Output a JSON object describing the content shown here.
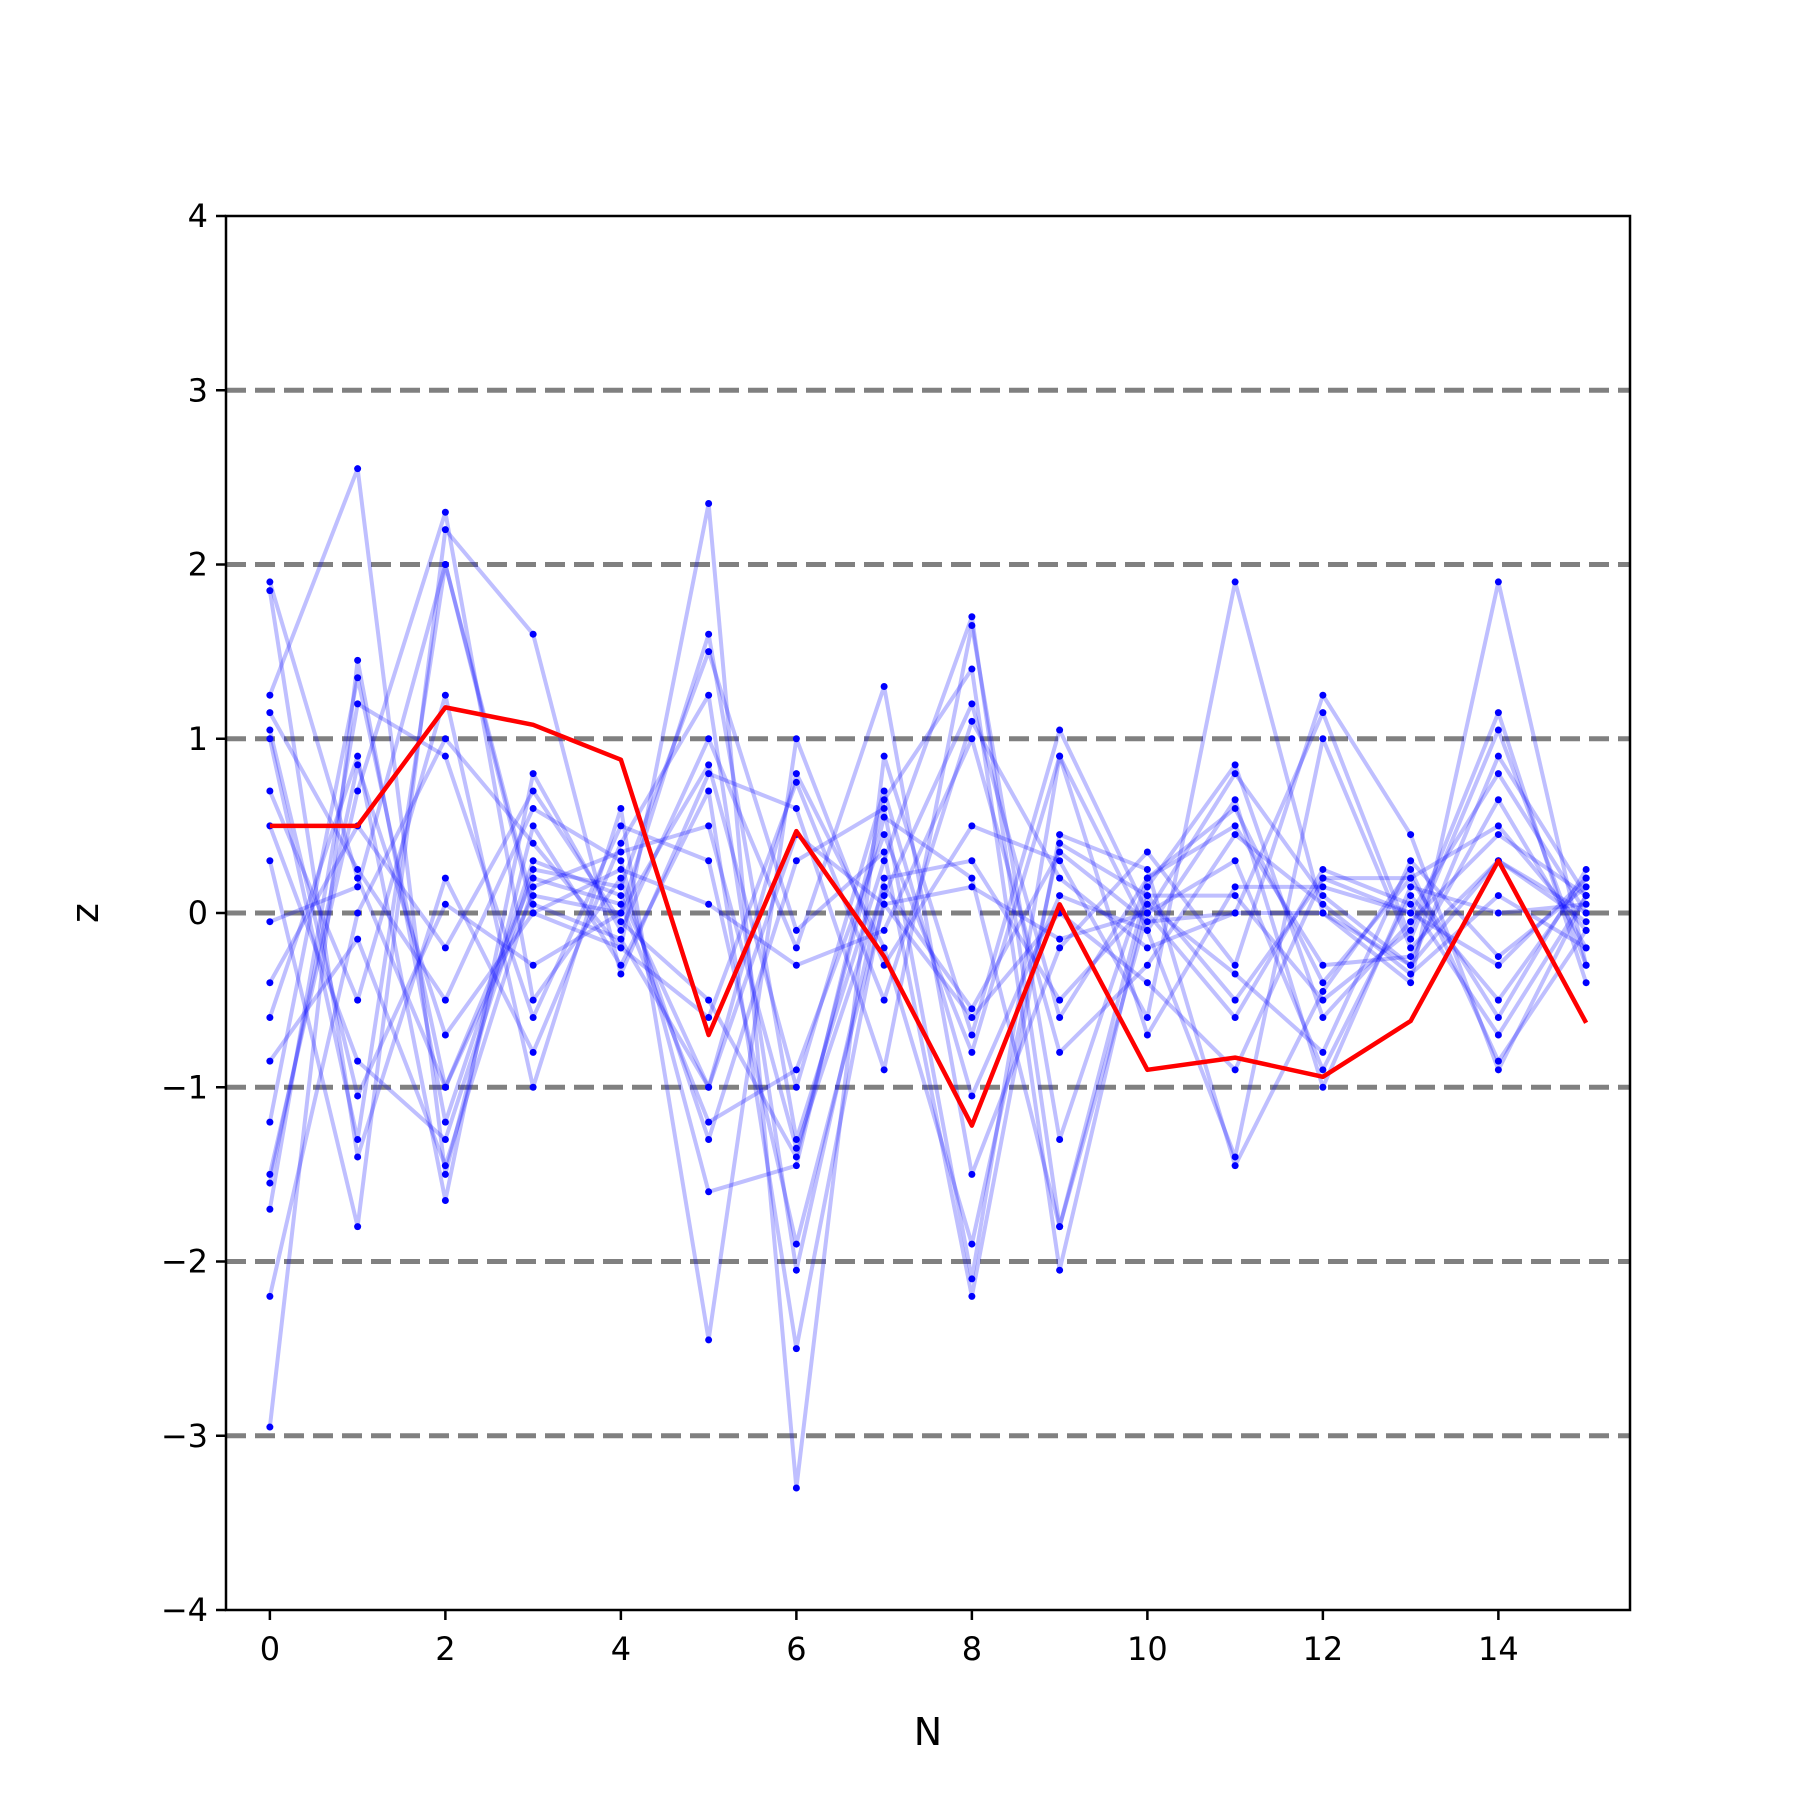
{
  "chart_data": {
    "type": "line",
    "xlabel": "N",
    "ylabel": "z",
    "xlim": [
      -0.5,
      15.5
    ],
    "ylim": [
      -4,
      4
    ],
    "xticks": [
      0,
      2,
      4,
      6,
      8,
      10,
      12,
      14
    ],
    "xtick_labels": [
      "0",
      "2",
      "4",
      "6",
      "8",
      "10",
      "12",
      "14"
    ],
    "yticks": [
      -4,
      -3,
      -2,
      -1,
      0,
      1,
      2,
      3,
      4
    ],
    "ytick_labels": [
      "−4",
      "−3",
      "−2",
      "−1",
      "0",
      "1",
      "2",
      "3",
      "4"
    ],
    "reference_lines": [
      -3,
      -2,
      -1,
      0,
      1,
      2,
      3
    ],
    "colors": {
      "trajectories": "#0000ff",
      "highlight": "#ff0000",
      "reference": "#808080",
      "axes": "#000000"
    },
    "x": [
      0,
      1,
      2,
      3,
      4,
      5,
      6,
      7,
      8,
      9,
      10,
      11,
      12,
      13,
      14,
      15
    ],
    "series": [
      {
        "values": [
          1.9,
          0.2,
          -1.0,
          0.1,
          0.0,
          1.6,
          -1.3,
          0.3,
          1.7,
          -1.8,
          0.0,
          0.8,
          0.1,
          -0.3,
          0.9,
          0.1
        ]
      },
      {
        "values": [
          -2.95,
          1.45,
          -1.2,
          0.3,
          0.1,
          -1.0,
          0.8,
          -0.2,
          -1.9,
          0.4,
          0.1,
          -0.5,
          0.2,
          0.0,
          -0.3,
          0.2
        ]
      },
      {
        "values": [
          1.25,
          2.55,
          -1.5,
          0.5,
          -0.3,
          0.7,
          -2.5,
          0.1,
          1.2,
          -0.6,
          0.2,
          0.6,
          -0.4,
          0.2,
          0.5,
          -0.1
        ]
      },
      {
        "values": [
          -1.5,
          0.7,
          2.3,
          -0.5,
          0.2,
          -1.3,
          0.3,
          0.6,
          -2.1,
          0.9,
          -0.1,
          -1.4,
          1.0,
          -0.2,
          0.3,
          0.0
        ]
      },
      {
        "values": [
          1.0,
          -1.3,
          2.0,
          0.0,
          -0.2,
          2.35,
          -3.3,
          0.9,
          -0.7,
          1.05,
          0.0,
          0.3,
          -0.9,
          0.1,
          -0.5,
          0.2
        ]
      },
      {
        "values": [
          0.7,
          -0.5,
          1.25,
          -1.0,
          0.6,
          -2.45,
          1.0,
          -0.3,
          0.5,
          0.3,
          -0.6,
          1.9,
          0.0,
          -0.4,
          1.9,
          -0.3
        ]
      },
      {
        "values": [
          -0.6,
          0.9,
          -1.65,
          0.8,
          -0.1,
          1.0,
          -0.2,
          1.3,
          -1.5,
          -0.2,
          0.35,
          -0.3,
          1.25,
          0.45,
          -0.9,
          0.1
        ]
      },
      {
        "values": [
          1.15,
          0.25,
          -0.5,
          0.6,
          0.3,
          -1.6,
          -1.45,
          0.65,
          1.4,
          -2.05,
          0.1,
          0.1,
          -0.5,
          -0.1,
          1.15,
          -0.4
        ]
      },
      {
        "values": [
          -1.7,
          1.2,
          0.9,
          -0.6,
          0.5,
          0.3,
          -1.9,
          0.05,
          -0.6,
          0.0,
          -0.4,
          -0.9,
          0.2,
          0.2,
          -0.6,
          0.25
        ]
      },
      {
        "values": [
          0.3,
          -1.8,
          2.2,
          1.6,
          -0.35,
          0.8,
          0.6,
          -0.9,
          1.65,
          -1.3,
          0.2,
          0.5,
          -0.3,
          -0.25,
          0.65,
          -0.2
        ]
      },
      {
        "values": [
          -1.2,
          1.35,
          -1.0,
          0.2,
          0.05,
          -1.2,
          -0.9,
          0.45,
          -0.8,
          0.9,
          -0.7,
          0.15,
          0.15,
          0.0,
          0.8,
          0.0
        ]
      },
      {
        "values": [
          1.85,
          -1.4,
          0.2,
          -0.8,
          0.4,
          1.25,
          -2.05,
          0.2,
          0.3,
          -0.5,
          0.05,
          -0.35,
          -0.8,
          0.3,
          -0.25,
          0.15
        ]
      },
      {
        "values": [
          -2.2,
          0.0,
          1.0,
          0.4,
          -0.2,
          -0.6,
          0.75,
          -0.5,
          1.1,
          0.2,
          -0.2,
          0.0,
          1.15,
          -0.15,
          1.05,
          -0.3
        ]
      },
      {
        "values": [
          0.5,
          -0.85,
          -1.3,
          0.25,
          0.15,
          1.5,
          -0.1,
          0.35,
          -2.2,
          0.45,
          0.25,
          -1.45,
          -0.45,
          0.25,
          -0.85,
          -0.1
        ]
      },
      {
        "values": [
          -0.4,
          0.5,
          -0.2,
          0.7,
          -0.05,
          -0.5,
          -1.4,
          0.55,
          0.2,
          -1.8,
          0.15,
          0.85,
          -0.6,
          -0.05,
          0.45,
          0.1
        ]
      },
      {
        "values": [
          -1.55,
          0.85,
          -0.7,
          0.0,
          0.25,
          0.05,
          -0.3,
          -0.1,
          1.0,
          -0.8,
          -0.3,
          0.45,
          0.05,
          -0.35,
          0.1,
          -0.2
        ]
      },
      {
        "values": [
          1.05,
          -1.05,
          0.05,
          -0.3,
          0.0,
          0.85,
          -1.0,
          0.7,
          -1.05,
          0.1,
          -0.1,
          0.65,
          -1.0,
          0.15,
          0.0,
          0.05
        ]
      },
      {
        "values": [
          -0.85,
          -0.15,
          -1.45,
          0.15,
          0.35,
          0.5,
          -1.35,
          0.15,
          -0.55,
          0.35,
          -0.05,
          0.0,
          0.0,
          -0.3,
          0.3,
          -0.05
        ]
      },
      {
        "values": [
          -0.05,
          0.15,
          2.0,
          0.05,
          -0.15,
          -1.0,
          0.45,
          0.05,
          0.15,
          -0.15,
          0.0,
          -0.6,
          0.25,
          0.05,
          -0.7,
          0.1
        ]
      },
      {
        "values": [
          0.5,
          0.5,
          1.18,
          1.08,
          0.88,
          -0.7,
          0.47,
          -0.25,
          -1.22,
          0.05,
          -0.9,
          -0.83,
          -0.94,
          -0.62,
          0.3,
          -0.63
        ]
      }
    ],
    "highlight_series_index": 19
  }
}
